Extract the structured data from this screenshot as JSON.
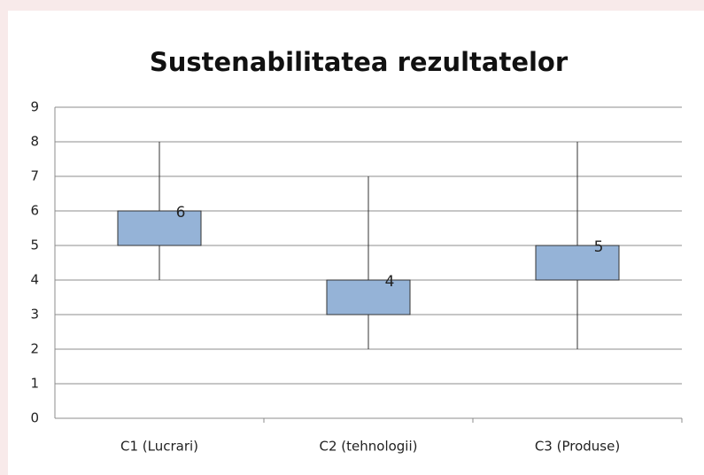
{
  "chart_data": {
    "type": "candlestick",
    "title": "Sustenabilitatea rezultatelor",
    "categories": [
      "C1 (Lucrari)",
      "C2 (tehnologii)",
      "C3 (Produse)"
    ],
    "open": [
      5,
      3,
      4
    ],
    "high": [
      8,
      7,
      8
    ],
    "low": [
      4,
      2,
      2
    ],
    "close": [
      6,
      4,
      5
    ],
    "color": "#95b3d7",
    "ylim": [
      0,
      9
    ],
    "yticks": [
      0,
      1,
      2,
      3,
      4,
      5,
      6,
      7,
      8,
      9
    ],
    "grid": true
  }
}
